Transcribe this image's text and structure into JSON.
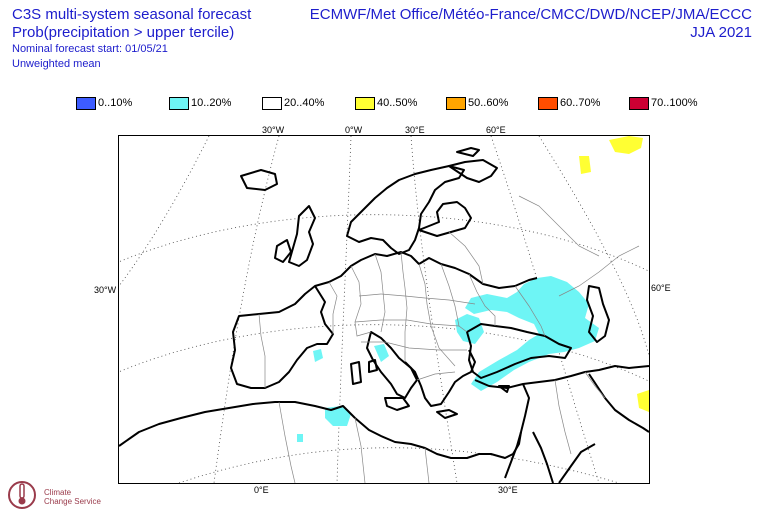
{
  "header": {
    "line1": "C3S multi-system seasonal forecast",
    "line2": "Prob(precipitation > upper tercile)",
    "line3": "Nominal forecast start: 01/05/21",
    "line4": "Unweighted mean",
    "centres": "ECMWF/Met Office/Météo-France/CMCC/DWD/NCEP/JMA/ECCC",
    "season": "JJA 2021"
  },
  "legend": [
    {
      "label": "0..10%",
      "color": "#3d5cff"
    },
    {
      "label": "10..20%",
      "color": "#6ef5f5"
    },
    {
      "label": "20..40%",
      "color": "#ffffff"
    },
    {
      "label": "40..50%",
      "color": "#ffff33"
    },
    {
      "label": "50..60%",
      "color": "#ffa500"
    },
    {
      "label": "60..70%",
      "color": "#ff4d00"
    },
    {
      "label": "70..100%",
      "color": "#cc0033"
    }
  ],
  "ticks": {
    "top": [
      "30°W",
      "0°W",
      "30°E",
      "60°E"
    ],
    "left": "30°W",
    "right": "60°E",
    "bottom": [
      "0°E",
      "30°E"
    ]
  },
  "logo": {
    "line1": "Climate",
    "line2": "Change Service"
  }
}
